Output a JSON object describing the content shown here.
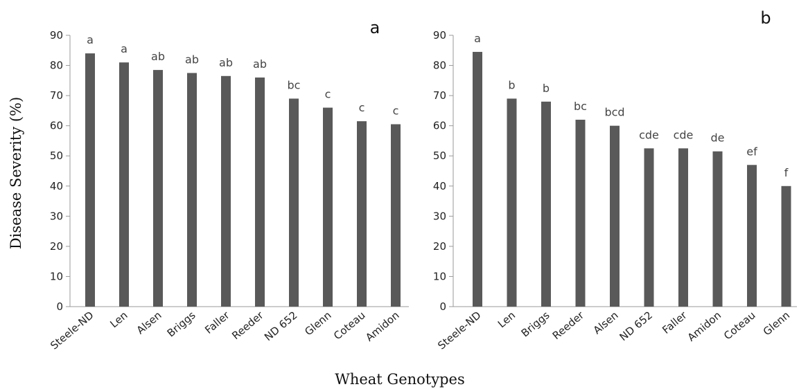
{
  "figure": {
    "ylabel": "Disease Severity (%)",
    "xlabel": "Wheat Genotypes"
  },
  "chart_data": [
    {
      "type": "bar",
      "panel_label": "a",
      "ylim": [
        0,
        90
      ],
      "yticks": [
        0,
        10,
        20,
        30,
        40,
        50,
        60,
        70,
        80,
        90
      ],
      "categories": [
        "Steele-ND",
        "Len",
        "Alsen",
        "Briggs",
        "Faller",
        "Reeder",
        "ND 652",
        "Glenn",
        "Coteau",
        "Amidon"
      ],
      "values": [
        84,
        81,
        78.5,
        77.5,
        76.5,
        76,
        69,
        66,
        61.5,
        60.5
      ],
      "letters": [
        "a",
        "a",
        "ab",
        "ab",
        "ab",
        "ab",
        "bc",
        "c",
        "c",
        "c"
      ],
      "bar_color": "#595959",
      "grid": false
    },
    {
      "type": "bar",
      "panel_label": "b",
      "ylim": [
        0,
        90
      ],
      "yticks": [
        0,
        10,
        20,
        30,
        40,
        50,
        60,
        70,
        80,
        90
      ],
      "categories": [
        "Steele-ND",
        "Len",
        "Briggs",
        "Reeder",
        "Alsen",
        "ND 652",
        "Faller",
        "Amidon",
        "Coteau",
        "Glenn"
      ],
      "values": [
        84.5,
        69,
        68,
        62,
        60,
        52.5,
        52.5,
        51.5,
        47,
        40
      ],
      "letters": [
        "a",
        "b",
        "b",
        "bc",
        "bcd",
        "cde",
        "cde",
        "de",
        "ef",
        "f"
      ],
      "bar_color": "#595959",
      "grid": false
    }
  ]
}
